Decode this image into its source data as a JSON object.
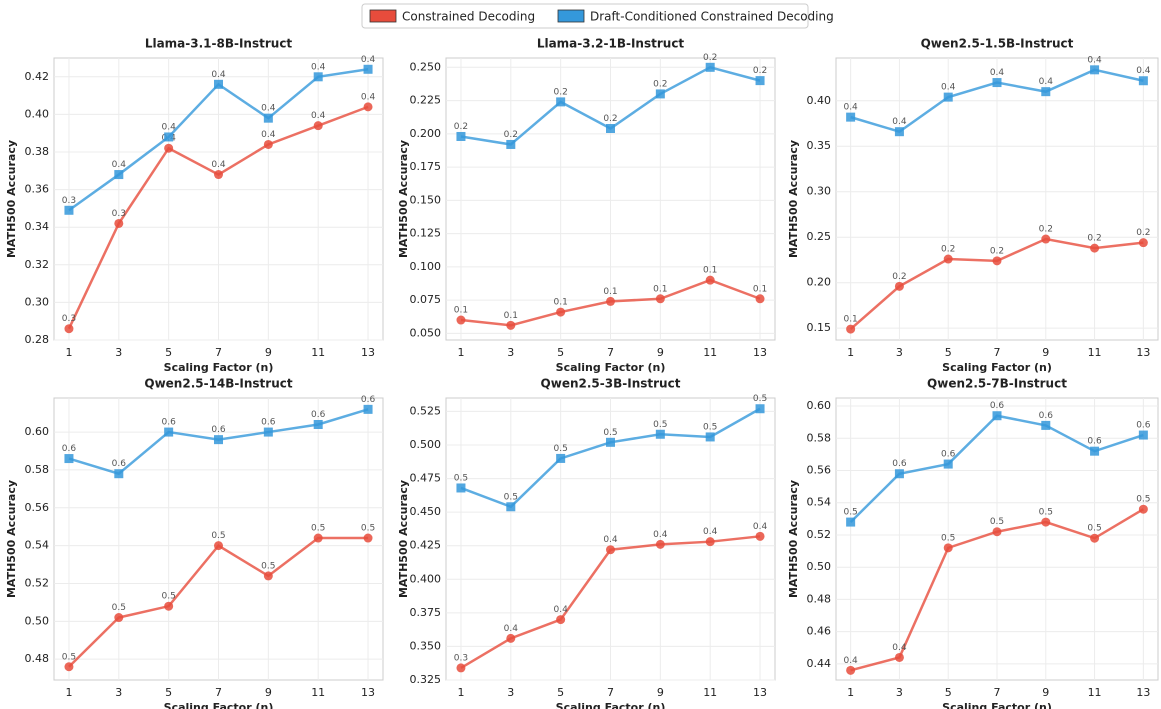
{
  "legend": [
    {
      "name": "Constrained Decoding",
      "color": "#e74c3c"
    },
    {
      "name": "Draft-Conditioned Constrained Decoding",
      "color": "#3498db"
    }
  ],
  "chart_data": [
    {
      "type": "line",
      "title": "Llama-3.1-8B-Instruct",
      "x_label": "Scaling Factor (n)",
      "y_label": "MATH500 Accuracy",
      "grid": true,
      "x": [
        1,
        3,
        5,
        7,
        9,
        11,
        13
      ],
      "xlim": [
        0.4,
        13.6
      ],
      "xticks": [
        1,
        3,
        5,
        7,
        9,
        11,
        13
      ],
      "ylim": [
        0.28,
        0.43
      ],
      "yticks": [
        {
          "value": 0.28,
          "label": "0.28"
        },
        {
          "value": 0.3,
          "label": "0.30"
        },
        {
          "value": 0.32,
          "label": "0.32"
        },
        {
          "value": 0.34,
          "label": "0.34"
        },
        {
          "value": 0.36,
          "label": "0.36"
        },
        {
          "value": 0.38,
          "label": "0.38"
        },
        {
          "value": 0.4,
          "label": "0.40"
        },
        {
          "value": 0.42,
          "label": "0.42"
        }
      ],
      "series": [
        {
          "marker": "circle",
          "values": [
            0.286,
            0.342,
            0.382,
            0.368,
            0.384,
            0.394,
            0.404
          ],
          "value_labels": [
            "0.3",
            "0.3",
            "0.4",
            "0.4",
            "0.4",
            "0.4",
            "0.4"
          ]
        },
        {
          "marker": "square",
          "values": [
            0.349,
            0.368,
            0.388,
            0.416,
            0.398,
            0.42,
            0.424
          ],
          "value_labels": [
            "0.3",
            "0.4",
            "0.4",
            "0.4",
            "0.4",
            "0.4",
            "0.4"
          ]
        }
      ]
    },
    {
      "type": "line",
      "title": "Llama-3.2-1B-Instruct",
      "x_label": "Scaling Factor (n)",
      "y_label": "MATH500 Accuracy",
      "grid": true,
      "x": [
        1,
        3,
        5,
        7,
        9,
        11,
        13
      ],
      "xlim": [
        0.4,
        13.6
      ],
      "xticks": [
        1,
        3,
        5,
        7,
        9,
        11,
        13
      ],
      "ylim": [
        0.045,
        0.257
      ],
      "yticks": [
        {
          "value": 0.05,
          "label": "0.050"
        },
        {
          "value": 0.075,
          "label": "0.075"
        },
        {
          "value": 0.1,
          "label": "0.100"
        },
        {
          "value": 0.125,
          "label": "0.125"
        },
        {
          "value": 0.15,
          "label": "0.150"
        },
        {
          "value": 0.175,
          "label": "0.175"
        },
        {
          "value": 0.2,
          "label": "0.200"
        },
        {
          "value": 0.225,
          "label": "0.225"
        },
        {
          "value": 0.25,
          "label": "0.250"
        }
      ],
      "series": [
        {
          "marker": "circle",
          "values": [
            0.06,
            0.056,
            0.066,
            0.074,
            0.076,
            0.09,
            0.076
          ],
          "value_labels": [
            "0.1",
            "0.1",
            "0.1",
            "0.1",
            "0.1",
            "0.1",
            "0.1"
          ]
        },
        {
          "marker": "square",
          "values": [
            0.198,
            0.192,
            0.224,
            0.204,
            0.23,
            0.25,
            0.24
          ],
          "value_labels": [
            "0.2",
            "0.2",
            "0.2",
            "0.2",
            "0.2",
            "0.2",
            "0.2"
          ]
        }
      ]
    },
    {
      "type": "line",
      "title": "Qwen2.5-1.5B-Instruct",
      "x_label": "Scaling Factor (n)",
      "y_label": "MATH500 Accuracy",
      "grid": true,
      "x": [
        1,
        3,
        5,
        7,
        9,
        11,
        13
      ],
      "xlim": [
        0.4,
        13.6
      ],
      "xticks": [
        1,
        3,
        5,
        7,
        9,
        11,
        13
      ],
      "ylim": [
        0.137,
        0.447
      ],
      "yticks": [
        {
          "value": 0.15,
          "label": "0.15"
        },
        {
          "value": 0.2,
          "label": "0.20"
        },
        {
          "value": 0.25,
          "label": "0.25"
        },
        {
          "value": 0.3,
          "label": "0.30"
        },
        {
          "value": 0.35,
          "label": "0.35"
        },
        {
          "value": 0.4,
          "label": "0.40"
        }
      ],
      "series": [
        {
          "marker": "circle",
          "values": [
            0.149,
            0.196,
            0.226,
            0.224,
            0.248,
            0.238,
            0.244
          ],
          "value_labels": [
            "0.1",
            "0.2",
            "0.2",
            "0.2",
            "0.2",
            "0.2",
            "0.2"
          ]
        },
        {
          "marker": "square",
          "values": [
            0.382,
            0.366,
            0.404,
            0.42,
            0.41,
            0.434,
            0.422
          ],
          "value_labels": [
            "0.4",
            "0.4",
            "0.4",
            "0.4",
            "0.4",
            "0.4",
            "0.4"
          ]
        }
      ]
    },
    {
      "type": "line",
      "title": "Qwen2.5-14B-Instruct",
      "x_label": "Scaling Factor (n)",
      "y_label": "MATH500 Accuracy",
      "grid": true,
      "x": [
        1,
        3,
        5,
        7,
        9,
        11,
        13
      ],
      "xlim": [
        0.4,
        13.6
      ],
      "xticks": [
        1,
        3,
        5,
        7,
        9,
        11,
        13
      ],
      "ylim": [
        0.469,
        0.618
      ],
      "yticks": [
        {
          "value": 0.48,
          "label": "0.48"
        },
        {
          "value": 0.5,
          "label": "0.50"
        },
        {
          "value": 0.52,
          "label": "0.52"
        },
        {
          "value": 0.54,
          "label": "0.54"
        },
        {
          "value": 0.56,
          "label": "0.56"
        },
        {
          "value": 0.58,
          "label": "0.58"
        },
        {
          "value": 0.6,
          "label": "0.60"
        }
      ],
      "series": [
        {
          "marker": "circle",
          "values": [
            0.476,
            0.502,
            0.508,
            0.54,
            0.524,
            0.544,
            0.544
          ],
          "value_labels": [
            "0.5",
            "0.5",
            "0.5",
            "0.5",
            "0.5",
            "0.5",
            "0.5"
          ]
        },
        {
          "marker": "square",
          "values": [
            0.586,
            0.578,
            0.6,
            0.596,
            0.6,
            0.604,
            0.612
          ],
          "value_labels": [
            "0.6",
            "0.6",
            "0.6",
            "0.6",
            "0.6",
            "0.6",
            "0.6"
          ]
        }
      ]
    },
    {
      "type": "line",
      "title": "Qwen2.5-3B-Instruct",
      "x_label": "Scaling Factor (n)",
      "y_label": "MATH500 Accuracy",
      "grid": true,
      "x": [
        1,
        3,
        5,
        7,
        9,
        11,
        13
      ],
      "xlim": [
        0.4,
        13.6
      ],
      "xticks": [
        1,
        3,
        5,
        7,
        9,
        11,
        13
      ],
      "ylim": [
        0.325,
        0.535
      ],
      "yticks": [
        {
          "value": 0.325,
          "label": "0.325"
        },
        {
          "value": 0.35,
          "label": "0.350"
        },
        {
          "value": 0.375,
          "label": "0.375"
        },
        {
          "value": 0.4,
          "label": "0.400"
        },
        {
          "value": 0.425,
          "label": "0.425"
        },
        {
          "value": 0.45,
          "label": "0.450"
        },
        {
          "value": 0.475,
          "label": "0.475"
        },
        {
          "value": 0.5,
          "label": "0.500"
        },
        {
          "value": 0.525,
          "label": "0.525"
        }
      ],
      "series": [
        {
          "marker": "circle",
          "values": [
            0.334,
            0.356,
            0.37,
            0.422,
            0.426,
            0.428,
            0.432
          ],
          "value_labels": [
            "0.3",
            "0.4",
            "0.4",
            "0.4",
            "0.4",
            "0.4",
            "0.4"
          ]
        },
        {
          "marker": "square",
          "values": [
            0.468,
            0.454,
            0.49,
            0.502,
            0.508,
            0.506,
            0.527
          ],
          "value_labels": [
            "0.5",
            "0.5",
            "0.5",
            "0.5",
            "0.5",
            "0.5",
            "0.5"
          ]
        }
      ]
    },
    {
      "type": "line",
      "title": "Qwen2.5-7B-Instruct",
      "x_label": "Scaling Factor (n)",
      "y_label": "MATH500 Accuracy",
      "grid": true,
      "x": [
        1,
        3,
        5,
        7,
        9,
        11,
        13
      ],
      "xlim": [
        0.4,
        13.6
      ],
      "xticks": [
        1,
        3,
        5,
        7,
        9,
        11,
        13
      ],
      "ylim": [
        0.43,
        0.605
      ],
      "yticks": [
        {
          "value": 0.44,
          "label": "0.44"
        },
        {
          "value": 0.46,
          "label": "0.46"
        },
        {
          "value": 0.48,
          "label": "0.48"
        },
        {
          "value": 0.5,
          "label": "0.50"
        },
        {
          "value": 0.52,
          "label": "0.52"
        },
        {
          "value": 0.54,
          "label": "0.54"
        },
        {
          "value": 0.56,
          "label": "0.56"
        },
        {
          "value": 0.58,
          "label": "0.58"
        },
        {
          "value": 0.6,
          "label": "0.60"
        }
      ],
      "series": [
        {
          "marker": "circle",
          "values": [
            0.436,
            0.444,
            0.512,
            0.522,
            0.528,
            0.518,
            0.536
          ],
          "value_labels": [
            "0.4",
            "0.4",
            "0.5",
            "0.5",
            "0.5",
            "0.5",
            "0.5"
          ]
        },
        {
          "marker": "square",
          "values": [
            0.528,
            0.558,
            0.564,
            0.594,
            0.588,
            0.572,
            0.582
          ],
          "value_labels": [
            "0.5",
            "0.6",
            "0.6",
            "0.6",
            "0.6",
            "0.6",
            "0.6"
          ]
        }
      ]
    }
  ]
}
